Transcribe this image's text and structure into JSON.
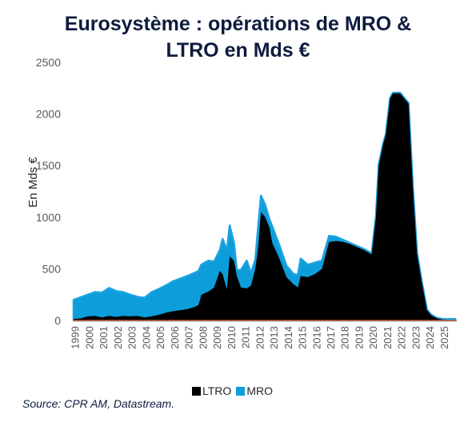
{
  "chart_data": {
    "type": "area",
    "title": [
      "Eurosystème : opérations de MRO &",
      "LTRO en Mds €"
    ],
    "ylabel": "En Mds €",
    "xlabel": "",
    "ylim": [
      0,
      2500
    ],
    "yticks": [
      0,
      500,
      1000,
      1500,
      2000,
      2500
    ],
    "xlim": [
      1999,
      2026
    ],
    "xtick_labels": [
      "1999",
      "2000",
      "2001",
      "2002",
      "2003",
      "2004",
      "2005",
      "2006",
      "2007",
      "2008",
      "2009",
      "2010",
      "2011",
      "2012",
      "2013",
      "2014",
      "2015",
      "2016",
      "2017",
      "2018",
      "2019",
      "2020",
      "2021",
      "2022",
      "2023",
      "2024",
      "2025"
    ],
    "stacked": true,
    "grid": false,
    "legend_position": "bottom",
    "colors": {
      "LTRO": "#000000",
      "MRO": "#0d9ddb",
      "MRO_outline": "#1aa3e0",
      "zero_line": "#e35b2a",
      "title": "#0d1b3e"
    },
    "series": [
      {
        "name": "LTRO",
        "points": [
          [
            1999.0,
            15
          ],
          [
            1999.5,
            20
          ],
          [
            2000.0,
            40
          ],
          [
            2000.5,
            45
          ],
          [
            2001.0,
            30
          ],
          [
            2001.5,
            45
          ],
          [
            2002.0,
            35
          ],
          [
            2002.5,
            45
          ],
          [
            2003.0,
            40
          ],
          [
            2003.5,
            45
          ],
          [
            2004.0,
            30
          ],
          [
            2004.5,
            40
          ],
          [
            2005.0,
            55
          ],
          [
            2005.5,
            75
          ],
          [
            2006.0,
            90
          ],
          [
            2006.5,
            100
          ],
          [
            2007.0,
            110
          ],
          [
            2007.5,
            130
          ],
          [
            2007.8,
            150
          ],
          [
            2008.0,
            250
          ],
          [
            2008.5,
            280
          ],
          [
            2008.9,
            320
          ],
          [
            2009.3,
            480
          ],
          [
            2009.5,
            450
          ],
          [
            2009.8,
            300
          ],
          [
            2010.0,
            620
          ],
          [
            2010.3,
            580
          ],
          [
            2010.5,
            430
          ],
          [
            2010.8,
            320
          ],
          [
            2011.2,
            310
          ],
          [
            2011.5,
            340
          ],
          [
            2011.8,
            500
          ],
          [
            2012.0,
            700
          ],
          [
            2012.2,
            1050
          ],
          [
            2012.5,
            1000
          ],
          [
            2012.8,
            900
          ],
          [
            2013.0,
            750
          ],
          [
            2013.5,
            600
          ],
          [
            2014.0,
            420
          ],
          [
            2014.5,
            350
          ],
          [
            2014.8,
            320
          ],
          [
            2015.0,
            430
          ],
          [
            2015.5,
            420
          ],
          [
            2016.0,
            450
          ],
          [
            2016.5,
            500
          ],
          [
            2017.0,
            760
          ],
          [
            2017.5,
            770
          ],
          [
            2018.0,
            760
          ],
          [
            2018.5,
            740
          ],
          [
            2019.0,
            710
          ],
          [
            2019.5,
            680
          ],
          [
            2020.0,
            640
          ],
          [
            2020.3,
            1000
          ],
          [
            2020.5,
            1500
          ],
          [
            2020.8,
            1700
          ],
          [
            2021.0,
            1800
          ],
          [
            2021.3,
            2150
          ],
          [
            2021.5,
            2200
          ],
          [
            2021.8,
            2200
          ],
          [
            2022.0,
            2200
          ],
          [
            2022.3,
            2150
          ],
          [
            2022.6,
            2100
          ],
          [
            2022.9,
            1300
          ],
          [
            2023.2,
            650
          ],
          [
            2023.5,
            400
          ],
          [
            2023.9,
            100
          ],
          [
            2024.2,
            50
          ],
          [
            2024.6,
            20
          ],
          [
            2025.0,
            10
          ],
          [
            2025.5,
            5
          ],
          [
            2025.9,
            5
          ]
        ]
      },
      {
        "name": "MRO",
        "points": [
          [
            1999.0,
            185
          ],
          [
            1999.5,
            205
          ],
          [
            2000.0,
            210
          ],
          [
            2000.5,
            230
          ],
          [
            2001.0,
            240
          ],
          [
            2001.3,
            270
          ],
          [
            2001.5,
            250
          ],
          [
            2002.0,
            230
          ],
          [
            2002.5,
            210
          ],
          [
            2002.9,
            185
          ],
          [
            2003.0,
            190
          ],
          [
            2003.5,
            235
          ],
          [
            2004.0,
            250
          ],
          [
            2004.5,
            265
          ],
          [
            2005.0,
            290
          ],
          [
            2005.5,
            305
          ],
          [
            2006.0,
            320
          ],
          [
            2006.5,
            330
          ],
          [
            2007.0,
            330
          ],
          [
            2007.5,
            290
          ],
          [
            2007.8,
            300
          ],
          [
            2008.0,
            250
          ],
          [
            2008.5,
            200
          ],
          [
            2008.9,
            340
          ],
          [
            2009.3,
            380
          ],
          [
            2009.5,
            300
          ],
          [
            2009.8,
            170
          ],
          [
            2010.0,
            60
          ],
          [
            2010.3,
            170
          ],
          [
            2010.5,
            270
          ],
          [
            2010.8,
            120
          ],
          [
            2011.2,
            90
          ],
          [
            2011.5,
            200
          ],
          [
            2011.8,
            160
          ],
          [
            2012.0,
            120
          ],
          [
            2012.2,
            80
          ],
          [
            2012.5,
            160
          ],
          [
            2012.8,
            130
          ],
          [
            2013.0,
            110
          ],
          [
            2013.5,
            100
          ],
          [
            2014.0,
            120
          ],
          [
            2014.5,
            170
          ],
          [
            2014.8,
            120
          ],
          [
            2015.0,
            110
          ],
          [
            2015.5,
            80
          ],
          [
            2016.0,
            60
          ],
          [
            2016.5,
            40
          ],
          [
            2017.0,
            20
          ],
          [
            2017.5,
            10
          ],
          [
            2018.0,
            10
          ],
          [
            2018.5,
            10
          ],
          [
            2019.0,
            10
          ],
          [
            2019.5,
            10
          ],
          [
            2020.0,
            10
          ],
          [
            2020.3,
            5
          ],
          [
            2020.5,
            5
          ],
          [
            2020.8,
            5
          ],
          [
            2021.0,
            5
          ],
          [
            2021.3,
            5
          ],
          [
            2021.5,
            5
          ],
          [
            2021.8,
            5
          ],
          [
            2022.0,
            5
          ],
          [
            2022.3,
            5
          ],
          [
            2022.6,
            5
          ],
          [
            2022.9,
            5
          ],
          [
            2023.2,
            5
          ],
          [
            2023.5,
            5
          ],
          [
            2023.9,
            5
          ],
          [
            2024.2,
            5
          ],
          [
            2024.6,
            10
          ],
          [
            2025.0,
            10
          ],
          [
            2025.5,
            10
          ],
          [
            2025.9,
            10
          ]
        ]
      }
    ]
  },
  "legend": {
    "ltro_label": "LTRO",
    "mro_label": "MRO"
  },
  "source": "Source: CPR AM, Datastream."
}
